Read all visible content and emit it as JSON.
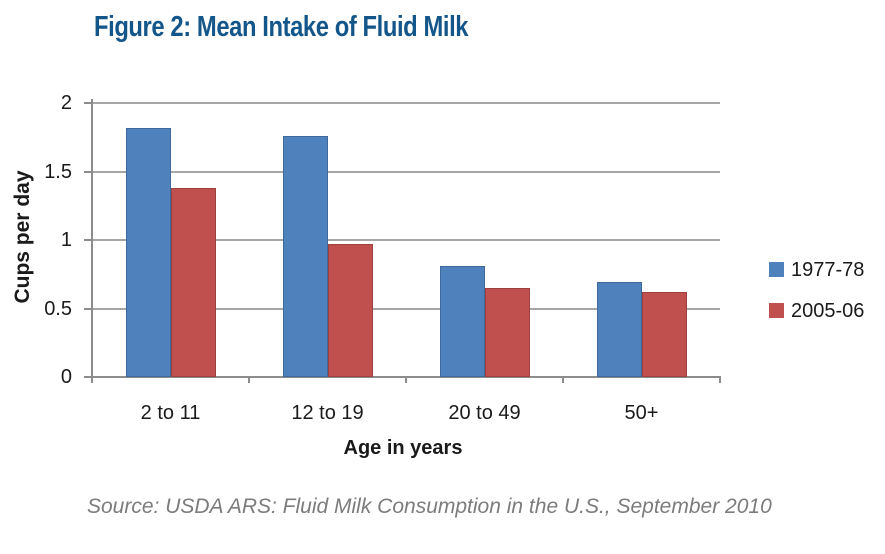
{
  "page": {
    "background": "#ffffff"
  },
  "title": {
    "text": "Figure 2: Mean Intake of Fluid Milk",
    "color": "#15568a"
  },
  "chart_data": {
    "type": "bar",
    "title": "Figure 2: Mean Intake of Fluid Milk",
    "categories": [
      "2 to 11",
      "12 to 19",
      "20 to 49",
      "50+"
    ],
    "series": [
      {
        "name": "1977-78",
        "color": "#4f81bd",
        "values": [
          1.82,
          1.76,
          0.81,
          0.69
        ]
      },
      {
        "name": "2005-06",
        "color": "#c0504d",
        "values": [
          1.38,
          0.97,
          0.65,
          0.62
        ]
      }
    ],
    "xlabel": "Age in years",
    "ylabel": "Cups per day",
    "ylim": [
      0,
      2
    ],
    "yticks": [
      {
        "value": 2,
        "label": "2"
      },
      {
        "value": 1.5,
        "label": "1.5"
      },
      {
        "value": 1,
        "label": "1"
      },
      {
        "value": 0.5,
        "label": "0.5"
      },
      {
        "value": 0,
        "label": "0"
      }
    ],
    "grid": true,
    "legend_position": "right",
    "grid_color": "#a6a6a6",
    "axis_color": "#8c8c8c"
  },
  "footer": {
    "source": "Source: USDA ARS: Fluid Milk Consumption in the U.S., September 2010"
  }
}
